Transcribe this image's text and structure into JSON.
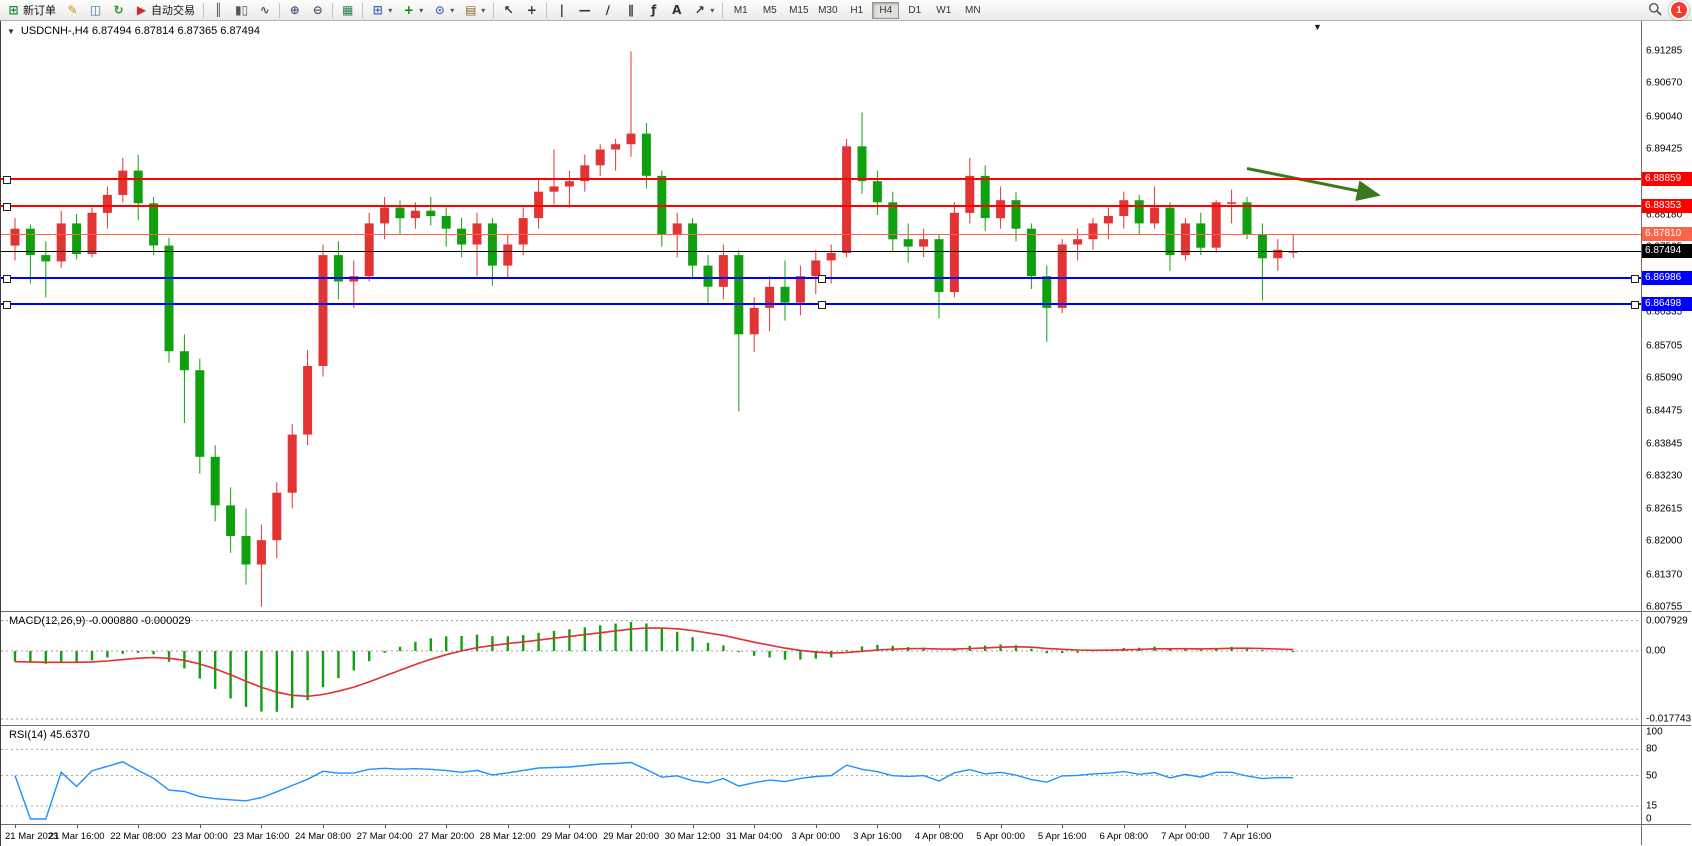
{
  "toolbar": {
    "dropdown_glyph": "▾",
    "notification_count": "1",
    "timeframes": [
      "M1",
      "M5",
      "M15",
      "M30",
      "H1",
      "H4",
      "D1",
      "W1",
      "MN"
    ],
    "active_timeframe": "H4",
    "items": [
      {
        "name": "new-order-button",
        "icon": "new-order-icon",
        "glyph": "⊞",
        "color": "#1f8a3b",
        "label": "新订单"
      },
      {
        "name": "metaeditor-button",
        "icon": "metaeditor-icon",
        "glyph": "✎",
        "color": "#c09418"
      },
      {
        "name": "charts-profile-button",
        "icon": "charts-profile-icon",
        "glyph": "◫",
        "color": "#3f6bb5"
      },
      {
        "name": "refresh-button",
        "icon": "refresh-icon",
        "glyph": "↻",
        "color": "#2f8f2f"
      },
      {
        "name": "autotrading-button",
        "icon": "autotrading-icon",
        "glyph": "▶",
        "color": "#cf2b2b",
        "label": "自动交易"
      },
      {
        "sep": true
      },
      {
        "name": "bar-chart-button",
        "icon": "bar-chart-icon",
        "glyph": "║",
        "color": "#555555"
      },
      {
        "name": "candlestick-chart-button",
        "icon": "candlestick-chart-icon",
        "glyph": "▮▯",
        "color": "#555555"
      },
      {
        "name": "line-chart-button",
        "icon": "line-chart-icon",
        "glyph": "∿",
        "color": "#555555"
      },
      {
        "sep": true
      },
      {
        "name": "zoom-in-button",
        "icon": "zoom-in-icon",
        "glyph": "⊕",
        "color": "#4a5a78"
      },
      {
        "name": "zoom-out-button",
        "icon": "zoom-out-icon",
        "glyph": "⊖",
        "color": "#4a5a78"
      },
      {
        "sep": true
      },
      {
        "name": "tile-windows-button",
        "icon": "tile-windows-icon",
        "glyph": "▦",
        "color": "#2e7d4f"
      },
      {
        "sep": true
      },
      {
        "name": "new-chart-button",
        "icon": "new-chart-icon",
        "glyph": "⊞",
        "color": "#3f6bb5",
        "dropdown": true
      },
      {
        "name": "indicators-button",
        "icon": "indicators-icon",
        "glyph": "+",
        "color": "#0d8a0d",
        "dropdown": true
      },
      {
        "name": "periods-button",
        "icon": "periods-icon",
        "glyph": "⊙",
        "color": "#3f6bb5",
        "dropdown": true
      },
      {
        "name": "templates-button",
        "icon": "templates-icon",
        "glyph": "▤",
        "color": "#8a6a2f",
        "dropdown": true
      },
      {
        "sep": true
      },
      {
        "name": "cursor-button",
        "icon": "cursor-icon",
        "glyph": "↖",
        "color": "#333333"
      },
      {
        "name": "crosshair-button",
        "icon": "crosshair-icon",
        "glyph": "+",
        "color": "#333333"
      },
      {
        "sep": true
      },
      {
        "name": "vertical-line-button",
        "icon": "vertical-line-icon",
        "glyph": "|",
        "color": "#333333"
      },
      {
        "name": "horizontal-line-button",
        "icon": "horizontal-line-icon",
        "glyph": "—",
        "color": "#333333"
      },
      {
        "name": "trendline-button",
        "icon": "trendline-icon",
        "glyph": "∕",
        "color": "#333333"
      },
      {
        "name": "channel-button",
        "icon": "channel-icon",
        "glyph": "∥",
        "color": "#333333"
      },
      {
        "name": "fibonacci-button",
        "icon": "fibonacci-icon",
        "glyph": "ƒ",
        "color": "#333333"
      },
      {
        "name": "text-button",
        "icon": "text-icon",
        "glyph": "A",
        "color": "#333333"
      },
      {
        "name": "arrows-button",
        "icon": "arrows-icon",
        "glyph": "↗",
        "color": "#333333",
        "dropdown": true
      },
      {
        "sep": true
      }
    ]
  },
  "chart": {
    "title": "USDCNH-,H4  6.87494 6.87814 6.87365 6.87494",
    "collapse_icon": "▼",
    "shift_marker_icon": "▼"
  },
  "colors": {
    "candle_up": "#e23434",
    "candle_down": "#0fa00f",
    "macd_histogram": "#11a011",
    "macd_signal": "#e03030",
    "rsi_line": "#1e90ff",
    "line_red": "#ff0000",
    "line_blue": "#0000ff",
    "line_orange": "#ff6347",
    "bid_line": "#000000",
    "arrow": "#3a7a1e"
  },
  "chart_data": [
    {
      "type": "candlestick",
      "symbol": "USDCNH-",
      "timeframe": "H4",
      "last_ohlc": {
        "open": "6.87494",
        "high": "6.87814",
        "low": "6.87365",
        "close": "6.87494"
      },
      "y_ticks": [
        "6.91285",
        "6.90670",
        "6.90040",
        "6.89425",
        "6.88810",
        "6.88180",
        "6.87565",
        "6.86950",
        "6.86335",
        "6.85705",
        "6.85090",
        "6.84475",
        "6.83845",
        "6.83230",
        "6.82615",
        "6.82000",
        "6.81370",
        "6.80755"
      ],
      "x_labels": [
        "21 Mar 2023",
        "21 Mar 16:00",
        "22 Mar 08:00",
        "23 Mar 00:00",
        "23 Mar 16:00",
        "24 Mar 08:00",
        "27 Mar 04:00",
        "27 Mar 20:00",
        "28 Mar 12:00",
        "29 Mar 04:00",
        "29 Mar 20:00",
        "30 Mar 12:00",
        "31 Mar 04:00",
        "3 Apr 00:00",
        "3 Apr 16:00",
        "4 Apr 08:00",
        "5 Apr 00:00",
        "5 Apr 16:00",
        "6 Apr 08:00",
        "7 Apr 00:00",
        "7 Apr 16:00"
      ],
      "bars_per_label": 4,
      "ohlc": [
        [
          6.876,
          6.8812,
          6.8732,
          6.8792
        ],
        [
          6.8792,
          6.88,
          6.8688,
          6.8742
        ],
        [
          6.8742,
          6.8768,
          6.8662,
          6.873
        ],
        [
          6.873,
          6.8826,
          6.8718,
          6.8802
        ],
        [
          6.8802,
          6.882,
          6.8734,
          6.8744
        ],
        [
          6.8744,
          6.8832,
          6.8738,
          6.8822
        ],
        [
          6.8822,
          6.8872,
          6.8792,
          6.8856
        ],
        [
          6.8856,
          6.8926,
          6.8842,
          6.8902
        ],
        [
          6.8902,
          6.8932,
          6.8808,
          6.884
        ],
        [
          6.884,
          6.8852,
          6.8742,
          6.876
        ],
        [
          6.876,
          6.8775,
          6.8538,
          6.856
        ],
        [
          6.856,
          6.8592,
          6.8424,
          6.8524
        ],
        [
          6.8524,
          6.8546,
          6.8328,
          6.836
        ],
        [
          6.836,
          6.8382,
          6.8238,
          6.8268
        ],
        [
          6.8268,
          6.8302,
          6.8178,
          6.821
        ],
        [
          6.821,
          6.8262,
          6.8118,
          6.8156
        ],
        [
          6.8156,
          6.8232,
          6.8076,
          6.8202
        ],
        [
          6.8202,
          6.8312,
          6.8168,
          6.8292
        ],
        [
          6.8292,
          6.8422,
          6.8262,
          6.8402
        ],
        [
          6.8402,
          6.8562,
          6.8382,
          6.8532
        ],
        [
          6.8532,
          6.8762,
          6.8512,
          6.8742
        ],
        [
          6.8742,
          6.8768,
          6.8658,
          6.8692
        ],
        [
          6.8692,
          6.8732,
          6.8642,
          6.8702
        ],
        [
          6.8702,
          6.8822,
          6.8692,
          6.8802
        ],
        [
          6.8802,
          6.8852,
          6.8772,
          6.8832
        ],
        [
          6.8832,
          6.8846,
          6.8782,
          6.8812
        ],
        [
          6.8812,
          6.8842,
          6.8792,
          6.8826
        ],
        [
          6.8826,
          6.8852,
          6.8798,
          6.8816
        ],
        [
          6.8816,
          6.8832,
          6.8758,
          6.8792
        ],
        [
          6.8792,
          6.8812,
          6.8738,
          6.8762
        ],
        [
          6.8762,
          6.8822,
          6.8702,
          6.8802
        ],
        [
          6.8802,
          6.8812,
          6.8684,
          6.8722
        ],
        [
          6.8722,
          6.8782,
          6.8698,
          6.8762
        ],
        [
          6.8762,
          6.8832,
          6.8742,
          6.8812
        ],
        [
          6.8812,
          6.8886,
          6.8792,
          6.8862
        ],
        [
          6.8862,
          6.8942,
          6.8838,
          6.8872
        ],
        [
          6.8872,
          6.8902,
          6.8832,
          6.8882
        ],
        [
          6.8882,
          6.8932,
          6.8862,
          6.8912
        ],
        [
          6.8912,
          6.8952,
          6.8892,
          6.8942
        ],
        [
          6.8942,
          6.8962,
          6.8902,
          6.8952
        ],
        [
          6.8952,
          6.9128,
          6.8928,
          6.8972
        ],
        [
          6.8972,
          6.8992,
          6.8868,
          6.8892
        ],
        [
          6.8892,
          6.8902,
          6.8758,
          6.8782
        ],
        [
          6.8782,
          6.8822,
          6.8738,
          6.8802
        ],
        [
          6.8802,
          6.8812,
          6.8698,
          6.8722
        ],
        [
          6.8722,
          6.8742,
          6.8652,
          6.8682
        ],
        [
          6.8682,
          6.8762,
          6.8658,
          6.8742
        ],
        [
          6.8742,
          6.8752,
          6.8446,
          6.8592
        ],
        [
          6.8592,
          6.8662,
          6.8558,
          6.8642
        ],
        [
          6.8642,
          6.8702,
          6.8598,
          6.8682
        ],
        [
          6.8682,
          6.8732,
          6.8618,
          6.8652
        ],
        [
          6.8652,
          6.8722,
          6.8628,
          6.8702
        ],
        [
          6.8702,
          6.8752,
          6.8668,
          6.8732
        ],
        [
          6.8732,
          6.8762,
          6.8688,
          6.8746
        ],
        [
          6.8746,
          6.8962,
          6.8738,
          6.8948
        ],
        [
          6.8948,
          6.9012,
          6.8858,
          6.8882
        ],
        [
          6.8882,
          6.8902,
          6.8818,
          6.8842
        ],
        [
          6.8842,
          6.8862,
          6.8748,
          6.8772
        ],
        [
          6.8772,
          6.8802,
          6.8728,
          6.8758
        ],
        [
          6.8758,
          6.8792,
          6.8738,
          6.8772
        ],
        [
          6.8772,
          6.8782,
          6.8622,
          6.8672
        ],
        [
          6.8672,
          6.8842,
          6.8662,
          6.8822
        ],
        [
          6.8822,
          6.8926,
          6.8802,
          6.8892
        ],
        [
          6.8892,
          6.8912,
          6.8788,
          6.8812
        ],
        [
          6.8812,
          6.8872,
          6.8792,
          6.8846
        ],
        [
          6.8846,
          6.8862,
          6.8768,
          6.8792
        ],
        [
          6.8792,
          6.8802,
          6.8678,
          6.8702
        ],
        [
          6.8702,
          6.8722,
          6.8578,
          6.8642
        ],
        [
          6.8642,
          6.8772,
          6.8632,
          6.8762
        ],
        [
          6.8762,
          6.8792,
          6.8732,
          6.8772
        ],
        [
          6.8772,
          6.8812,
          6.8752,
          6.8802
        ],
        [
          6.8802,
          6.8832,
          6.8772,
          6.8816
        ],
        [
          6.8816,
          6.8862,
          6.8792,
          6.8846
        ],
        [
          6.8846,
          6.8856,
          6.8782,
          6.8802
        ],
        [
          6.8802,
          6.8872,
          6.8792,
          6.8832
        ],
        [
          6.8832,
          6.8842,
          6.8712,
          6.8742
        ],
        [
          6.8742,
          6.8812,
          6.8732,
          6.8802
        ],
        [
          6.8802,
          6.8822,
          6.8742,
          6.8756
        ],
        [
          6.8756,
          6.8846,
          6.8746,
          6.8842
        ],
        [
          6.8842,
          6.8866,
          6.8802,
          6.8842
        ],
        [
          6.8842,
          6.8852,
          6.8772,
          6.8782
        ],
        [
          6.8782,
          6.8802,
          6.8656,
          6.8736
        ],
        [
          6.8736,
          6.8772,
          6.8712,
          6.8752
        ],
        [
          6.87494,
          6.87814,
          6.87365,
          6.87494
        ]
      ],
      "hlines": [
        {
          "price": 6.88859,
          "label": "6.88859",
          "color": "#ff0000",
          "width": 2,
          "handles": [
            "left"
          ]
        },
        {
          "price": 6.88353,
          "label": "6.88353",
          "color": "#ff0000",
          "width": 2,
          "handles": [
            "left"
          ]
        },
        {
          "price": 6.8781,
          "label": "6.87810",
          "color": "#ff6347",
          "width": 1,
          "handles": []
        },
        {
          "price": 6.87494,
          "label": "6.87494",
          "color": "#000000",
          "width": 1,
          "handles": [],
          "role": "bid"
        },
        {
          "price": 6.86986,
          "label": "6.86986",
          "color": "#0000ff",
          "width": 2,
          "handles": [
            "left",
            "center",
            "right"
          ]
        },
        {
          "price": 6.86498,
          "label": "6.86498",
          "color": "#0000ff",
          "width": 2,
          "handles": [
            "left",
            "center",
            "right"
          ]
        }
      ],
      "arrow": {
        "from_bar": 80,
        "from_price": 6.8906,
        "to_bar": 88.5,
        "to_price": 6.8856,
        "color": "#3a7a1e"
      }
    },
    {
      "type": "macd",
      "label": "MACD(12,26,9) -0.000880 -0.000029",
      "fast": 12,
      "slow": 26,
      "signal": 9,
      "current_main": "-0.000880",
      "current_signal": "-0.000029",
      "y_ticks": [
        {
          "label": "0.007929",
          "value": 0.007929
        },
        {
          "label": "0.00",
          "value": 0
        },
        {
          "label": "-0.017743",
          "value": -0.017743
        }
      ]
    },
    {
      "type": "rsi",
      "label": "RSI(14) 45.6370",
      "period": 14,
      "current": "45.6370",
      "levels": [
        80,
        50,
        15
      ],
      "y_ticks": [
        {
          "label": "100",
          "value": 100
        },
        {
          "label": "80",
          "value": 80
        },
        {
          "label": "50",
          "value": 50
        },
        {
          "label": "15",
          "value": 15
        },
        {
          "label": "0",
          "value": 0
        }
      ]
    }
  ]
}
